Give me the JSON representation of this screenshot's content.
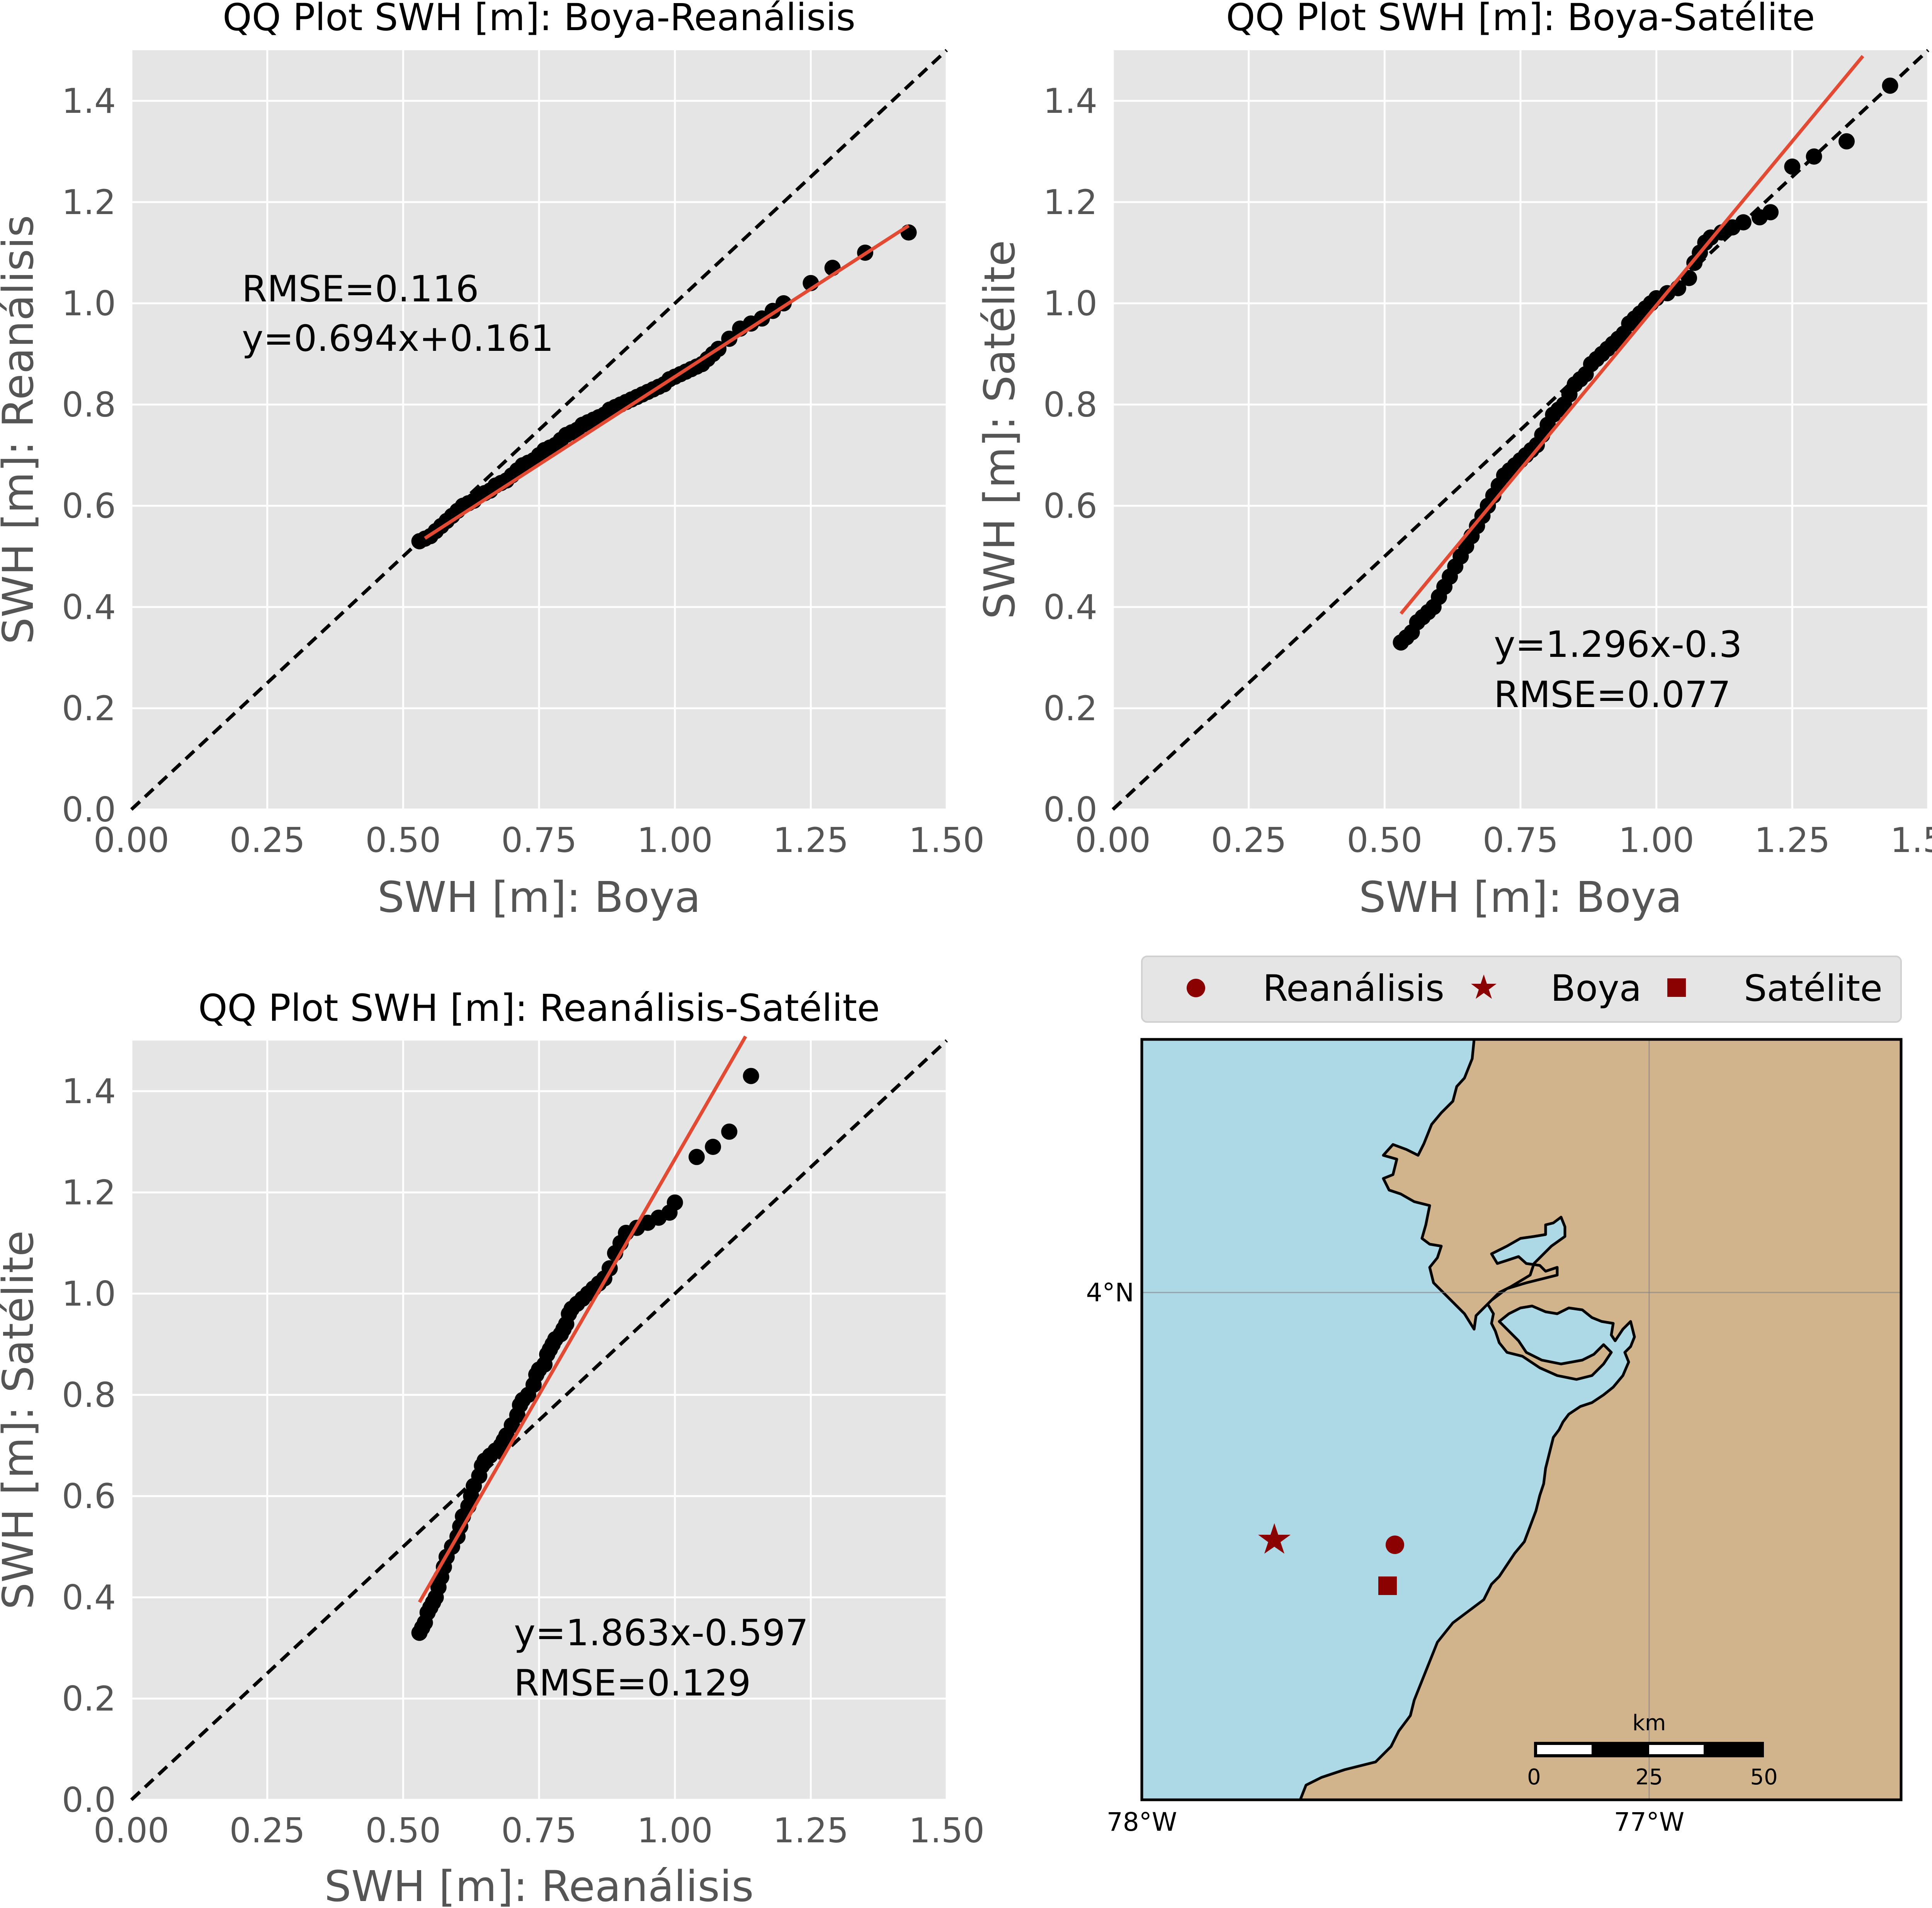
{
  "colors": {
    "panel_bg": "#e5e5e5",
    "grid": "#ffffff",
    "points": "#000000",
    "fit_line": "#e24a33",
    "identity_line": "#000000",
    "sea": "#add8e6",
    "land": "#d2b48c",
    "marker": "#8b0000"
  },
  "chart_data": [
    {
      "type": "scatter",
      "title": "QQ Plot SWH [m]: Boya-Reanálisis",
      "xlabel": "SWH [m]: Boya",
      "ylabel": "SWH [m]: Reanálisis",
      "xlim": [
        0,
        1.5
      ],
      "ylim": [
        0,
        1.5
      ],
      "xticks": [
        "0.00",
        "0.25",
        "0.50",
        "0.75",
        "1.00",
        "1.25",
        "1.50"
      ],
      "yticks": [
        "0.0",
        "0.2",
        "0.4",
        "0.6",
        "0.8",
        "1.0",
        "1.2",
        "1.4"
      ],
      "grid": true,
      "identity_line": true,
      "fit": {
        "slope": 0.694,
        "intercept": 0.161,
        "x_range": [
          0.54,
          1.43
        ]
      },
      "annotations": [
        "RMSE=0.116",
        "y=0.694x+0.161"
      ],
      "points": {
        "x": [
          0.53,
          0.54,
          0.55,
          0.56,
          0.57,
          0.58,
          0.59,
          0.6,
          0.61,
          0.62,
          0.63,
          0.64,
          0.65,
          0.66,
          0.67,
          0.68,
          0.69,
          0.7,
          0.71,
          0.72,
          0.73,
          0.74,
          0.75,
          0.76,
          0.77,
          0.78,
          0.79,
          0.8,
          0.81,
          0.82,
          0.83,
          0.84,
          0.85,
          0.86,
          0.87,
          0.88,
          0.89,
          0.9,
          0.91,
          0.92,
          0.93,
          0.94,
          0.95,
          0.96,
          0.97,
          0.98,
          0.99,
          1.0,
          1.01,
          1.02,
          1.03,
          1.04,
          1.05,
          1.06,
          1.07,
          1.08,
          1.1,
          1.12,
          1.14,
          1.16,
          1.18,
          1.2,
          1.25,
          1.29,
          1.35,
          1.43
        ],
        "y": [
          0.53,
          0.535,
          0.54,
          0.55,
          0.56,
          0.57,
          0.58,
          0.59,
          0.6,
          0.605,
          0.61,
          0.62,
          0.625,
          0.63,
          0.64,
          0.645,
          0.65,
          0.66,
          0.67,
          0.68,
          0.685,
          0.69,
          0.7,
          0.71,
          0.715,
          0.72,
          0.73,
          0.74,
          0.745,
          0.75,
          0.76,
          0.765,
          0.77,
          0.775,
          0.78,
          0.79,
          0.795,
          0.8,
          0.805,
          0.81,
          0.815,
          0.82,
          0.825,
          0.83,
          0.835,
          0.84,
          0.85,
          0.855,
          0.86,
          0.865,
          0.87,
          0.875,
          0.88,
          0.89,
          0.9,
          0.91,
          0.93,
          0.95,
          0.96,
          0.97,
          0.985,
          1.0,
          1.04,
          1.07,
          1.1,
          1.14
        ]
      }
    },
    {
      "type": "scatter",
      "title": "QQ Plot SWH [m]: Boya-Satélite",
      "xlabel": "SWH [m]: Boya",
      "ylabel": "SWH [m]: Satélite",
      "xlim": [
        0,
        1.5
      ],
      "ylim": [
        0,
        1.5
      ],
      "xticks": [
        "0.00",
        "0.25",
        "0.50",
        "0.75",
        "1.00",
        "1.25",
        "1.50"
      ],
      "yticks": [
        "0.0",
        "0.2",
        "0.4",
        "0.6",
        "0.8",
        "1.0",
        "1.2",
        "1.4"
      ],
      "grid": true,
      "identity_line": true,
      "fit": {
        "slope": 1.296,
        "intercept": -0.3,
        "x_range": [
          0.53,
          1.38
        ]
      },
      "annotations": [
        "y=1.296x-0.3",
        "RMSE=0.077"
      ],
      "points": {
        "x": [
          0.53,
          0.54,
          0.55,
          0.56,
          0.57,
          0.58,
          0.59,
          0.6,
          0.61,
          0.62,
          0.63,
          0.64,
          0.65,
          0.66,
          0.67,
          0.68,
          0.69,
          0.7,
          0.71,
          0.72,
          0.73,
          0.74,
          0.75,
          0.76,
          0.77,
          0.78,
          0.79,
          0.8,
          0.81,
          0.82,
          0.83,
          0.84,
          0.85,
          0.86,
          0.87,
          0.88,
          0.89,
          0.9,
          0.91,
          0.92,
          0.93,
          0.94,
          0.95,
          0.96,
          0.97,
          0.98,
          0.99,
          1.0,
          1.02,
          1.04,
          1.06,
          1.07,
          1.08,
          1.09,
          1.1,
          1.12,
          1.14,
          1.16,
          1.19,
          1.21,
          1.25,
          1.29,
          1.35,
          1.43
        ],
        "y": [
          0.33,
          0.34,
          0.35,
          0.37,
          0.38,
          0.39,
          0.4,
          0.42,
          0.44,
          0.46,
          0.48,
          0.5,
          0.52,
          0.54,
          0.56,
          0.58,
          0.6,
          0.62,
          0.64,
          0.66,
          0.67,
          0.68,
          0.69,
          0.7,
          0.71,
          0.72,
          0.74,
          0.76,
          0.78,
          0.79,
          0.8,
          0.82,
          0.84,
          0.85,
          0.86,
          0.88,
          0.89,
          0.9,
          0.91,
          0.92,
          0.93,
          0.94,
          0.96,
          0.97,
          0.98,
          0.99,
          1.0,
          1.01,
          1.02,
          1.03,
          1.05,
          1.08,
          1.1,
          1.12,
          1.13,
          1.14,
          1.15,
          1.16,
          1.17,
          1.18,
          1.27,
          1.29,
          1.32,
          1.43
        ]
      }
    },
    {
      "type": "scatter",
      "title": "QQ Plot SWH [m]: Reanálisis-Satélite",
      "xlabel": "SWH [m]: Reanálisis",
      "ylabel": "SWH [m]: Satélite",
      "xlim": [
        0,
        1.5
      ],
      "ylim": [
        0,
        1.5
      ],
      "xticks": [
        "0.00",
        "0.25",
        "0.50",
        "0.75",
        "1.00",
        "1.25",
        "1.50"
      ],
      "yticks": [
        "0.0",
        "0.2",
        "0.4",
        "0.6",
        "0.8",
        "1.0",
        "1.2",
        "1.4"
      ],
      "grid": true,
      "identity_line": true,
      "fit": {
        "slope": 1.863,
        "intercept": -0.597,
        "x_range": [
          0.53,
          1.13
        ]
      },
      "annotations": [
        "y=1.863x-0.597",
        "RMSE=0.129"
      ],
      "points": {
        "x": [
          0.53,
          0.535,
          0.54,
          0.545,
          0.55,
          0.555,
          0.56,
          0.565,
          0.57,
          0.575,
          0.58,
          0.59,
          0.6,
          0.605,
          0.61,
          0.62,
          0.625,
          0.63,
          0.64,
          0.645,
          0.65,
          0.66,
          0.67,
          0.68,
          0.685,
          0.69,
          0.7,
          0.71,
          0.715,
          0.72,
          0.73,
          0.74,
          0.745,
          0.75,
          0.76,
          0.765,
          0.77,
          0.775,
          0.78,
          0.79,
          0.795,
          0.8,
          0.805,
          0.81,
          0.82,
          0.83,
          0.84,
          0.85,
          0.86,
          0.87,
          0.88,
          0.89,
          0.9,
          0.91,
          0.93,
          0.95,
          0.97,
          0.99,
          1.0,
          1.04,
          1.07,
          1.1,
          1.14
        ],
        "y": [
          0.33,
          0.34,
          0.35,
          0.37,
          0.38,
          0.39,
          0.4,
          0.42,
          0.44,
          0.46,
          0.48,
          0.5,
          0.52,
          0.54,
          0.56,
          0.58,
          0.6,
          0.62,
          0.64,
          0.66,
          0.67,
          0.68,
          0.69,
          0.7,
          0.71,
          0.72,
          0.74,
          0.76,
          0.78,
          0.79,
          0.8,
          0.82,
          0.84,
          0.85,
          0.86,
          0.88,
          0.89,
          0.9,
          0.91,
          0.92,
          0.93,
          0.94,
          0.96,
          0.97,
          0.98,
          0.99,
          1.0,
          1.01,
          1.02,
          1.03,
          1.05,
          1.08,
          1.1,
          1.12,
          1.13,
          1.14,
          1.15,
          1.16,
          1.18,
          1.27,
          1.29,
          1.32,
          1.43
        ]
      }
    }
  ],
  "map": {
    "lon_labels": [
      "78°W",
      "77°W"
    ],
    "lat_labels": [
      "4°N"
    ],
    "legend": [
      {
        "label": "Reanálisis",
        "marker": "circle"
      },
      {
        "label": "Boya",
        "marker": "star"
      },
      {
        "label": "Satélite",
        "marker": "square"
      }
    ],
    "markers": [
      {
        "name": "Reanálisis",
        "marker": "circle"
      },
      {
        "name": "Boya",
        "marker": "star"
      },
      {
        "name": "Satélite",
        "marker": "square"
      }
    ],
    "scale_bar": {
      "unit": "km",
      "ticks": [
        "0",
        "25",
        "50"
      ]
    }
  }
}
